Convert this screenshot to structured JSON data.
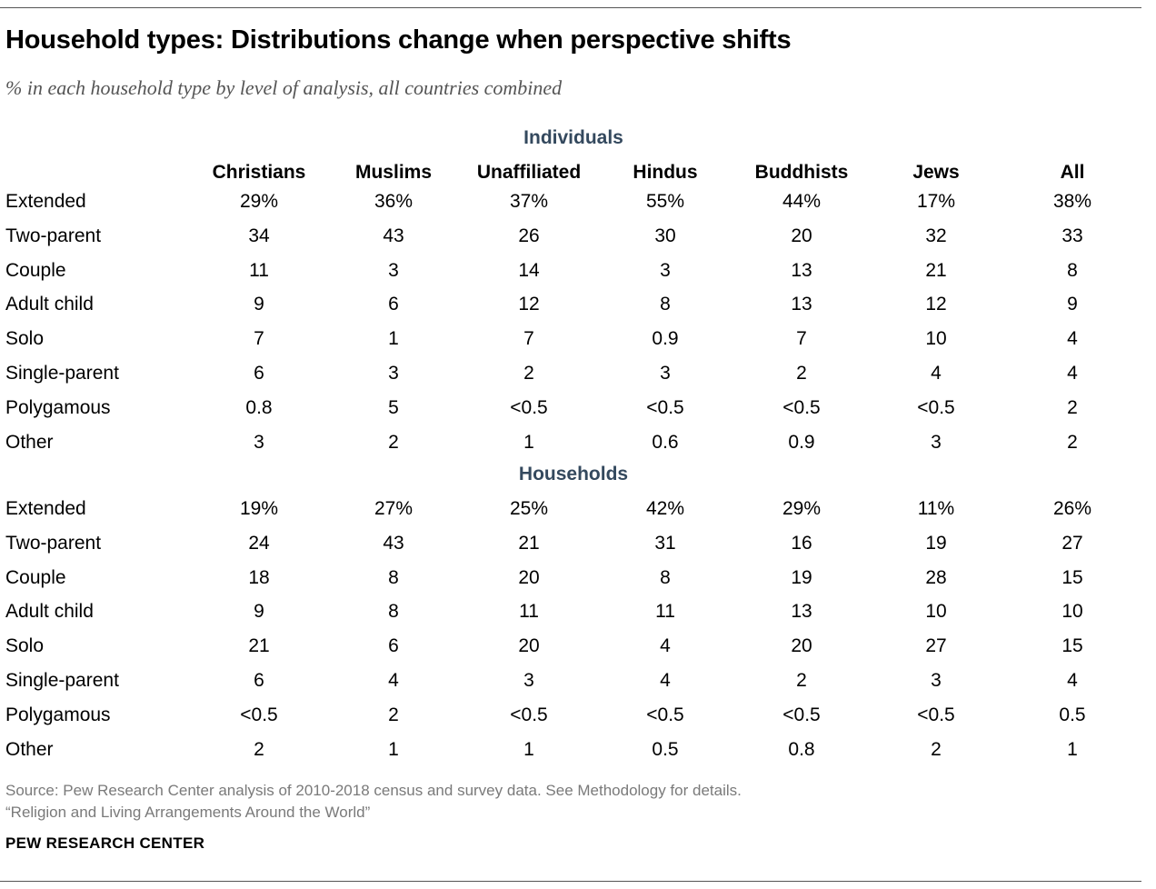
{
  "title": "Household types: Distributions change when perspective shifts",
  "subtitle": "% in each household type by level of analysis, all countries combined",
  "source_lines": [
    "Source: Pew Research Center analysis of 2010-2018 census and survey data. See Methodology for details.",
    "“Religion and Living Arrangements Around the World”"
  ],
  "brand": "PEW RESEARCH CENTER",
  "chart_data": {
    "type": "table",
    "columns": [
      "Christians",
      "Muslims",
      "Unaffiliated",
      "Hindus",
      "Buddhists",
      "Jews",
      "All"
    ],
    "sections": [
      {
        "title": "Individuals",
        "rows": [
          {
            "label": "Extended",
            "values": [
              "29%",
              "36%",
              "37%",
              "55%",
              "44%",
              "17%",
              "38%"
            ]
          },
          {
            "label": "Two-parent",
            "values": [
              "34",
              "43",
              "26",
              "30",
              "20",
              "32",
              "33"
            ]
          },
          {
            "label": "Couple",
            "values": [
              "11",
              "3",
              "14",
              "3",
              "13",
              "21",
              "8"
            ]
          },
          {
            "label": "Adult child",
            "values": [
              "9",
              "6",
              "12",
              "8",
              "13",
              "12",
              "9"
            ]
          },
          {
            "label": "Solo",
            "values": [
              "7",
              "1",
              "7",
              "0.9",
              "7",
              "10",
              "4"
            ]
          },
          {
            "label": "Single-parent",
            "values": [
              "6",
              "3",
              "2",
              "3",
              "2",
              "4",
              "4"
            ]
          },
          {
            "label": "Polygamous",
            "values": [
              "0.8",
              "5",
              "<0.5",
              "<0.5",
              "<0.5",
              "<0.5",
              "2"
            ]
          },
          {
            "label": "Other",
            "values": [
              "3",
              "2",
              "1",
              "0.6",
              "0.9",
              "3",
              "2"
            ]
          }
        ]
      },
      {
        "title": "Households",
        "rows": [
          {
            "label": "Extended",
            "values": [
              "19%",
              "27%",
              "25%",
              "42%",
              "29%",
              "11%",
              "26%"
            ]
          },
          {
            "label": "Two-parent",
            "values": [
              "24",
              "43",
              "21",
              "31",
              "16",
              "19",
              "27"
            ]
          },
          {
            "label": "Couple",
            "values": [
              "18",
              "8",
              "20",
              "8",
              "19",
              "28",
              "15"
            ]
          },
          {
            "label": "Adult child",
            "values": [
              "9",
              "8",
              "11",
              "11",
              "13",
              "10",
              "10"
            ]
          },
          {
            "label": "Solo",
            "values": [
              "21",
              "6",
              "20",
              "4",
              "20",
              "27",
              "15"
            ]
          },
          {
            "label": "Single-parent",
            "values": [
              "6",
              "4",
              "3",
              "4",
              "2",
              "3",
              "4"
            ]
          },
          {
            "label": "Polygamous",
            "values": [
              "<0.5",
              "2",
              "<0.5",
              "<0.5",
              "<0.5",
              "<0.5",
              "0.5"
            ]
          },
          {
            "label": "Other",
            "values": [
              "2",
              "1",
              "1",
              "0.5",
              "0.8",
              "2",
              "1"
            ]
          }
        ]
      }
    ]
  }
}
